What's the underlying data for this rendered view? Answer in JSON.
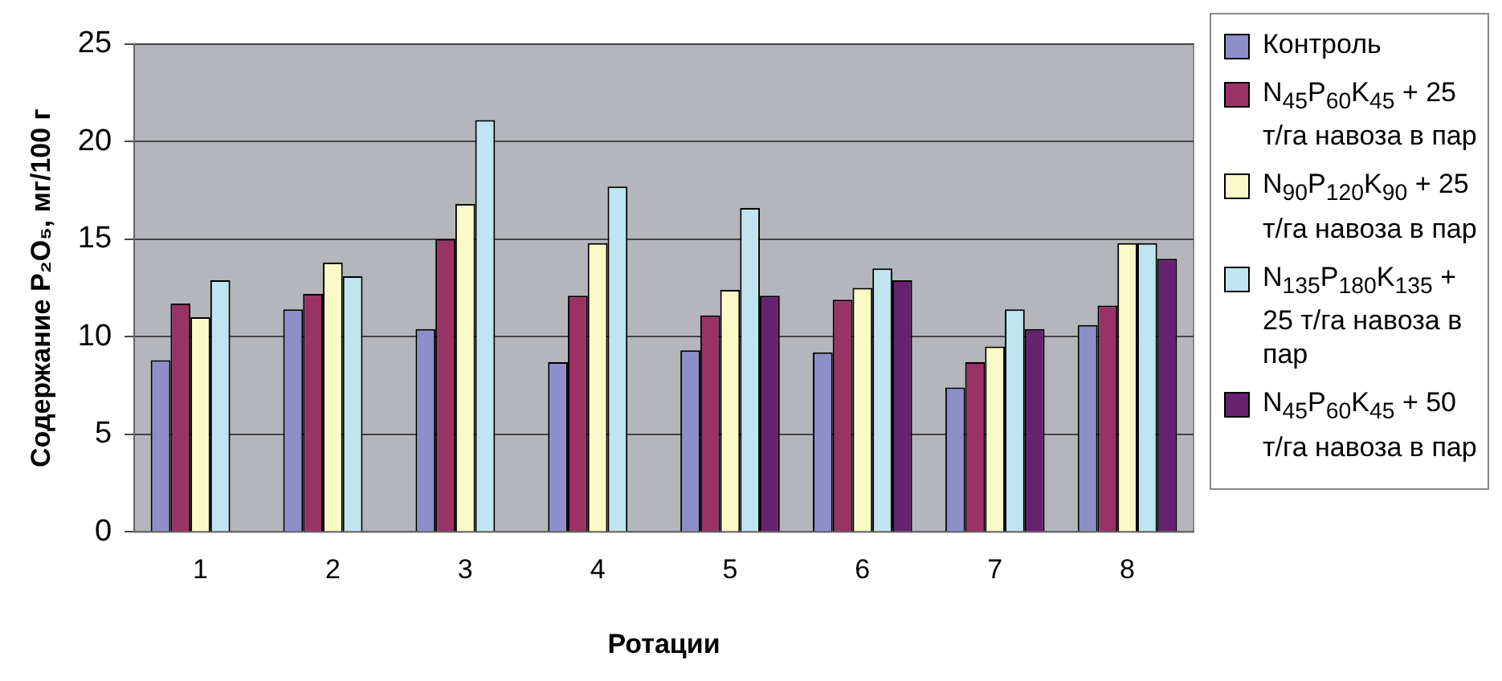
{
  "chart_data": {
    "type": "bar",
    "xlabel": "Ротации",
    "ylabel": "Содержание P₂O₅, мг/100 г",
    "categories": [
      "1",
      "2",
      "3",
      "4",
      "5",
      "6",
      "7",
      "8"
    ],
    "series": [
      {
        "name": "Контроль",
        "color": "#8e8ec8",
        "values": [
          8.8,
          11.4,
          10.4,
          8.7,
          9.3,
          9.2,
          7.4,
          10.6
        ]
      },
      {
        "name": "N$_{45}$P$_{60}$K$_{45}$ + 25 т/га навоза в пар",
        "color": "#993366",
        "values": [
          11.7,
          12.2,
          15.0,
          12.1,
          11.1,
          11.9,
          8.7,
          11.6
        ]
      },
      {
        "name": "N$_{90}$P$_{120}$K$_{90}$ + 25 т/га навоза в пар",
        "color": "#fafac8",
        "values": [
          11.0,
          13.8,
          16.8,
          14.8,
          12.4,
          12.5,
          9.5,
          14.8
        ]
      },
      {
        "name": "N$_{135}$P$_{180}$K$_{135}$ + 25 т/га навоза в пар",
        "color": "#c0e4f0",
        "values": [
          12.9,
          13.1,
          21.1,
          17.7,
          16.6,
          13.5,
          11.4,
          14.8
        ]
      },
      {
        "name": "N$_{45}$P$_{60}$K$_{45}$ + 50 т/га навоза в пар",
        "color": "#66226e",
        "values": [
          null,
          null,
          null,
          null,
          12.1,
          12.9,
          10.4,
          14.0
        ]
      }
    ],
    "ylim": [
      0,
      25
    ],
    "yticks": [
      0,
      5,
      10,
      15,
      20,
      25
    ],
    "grid": "y",
    "legend": "right"
  }
}
